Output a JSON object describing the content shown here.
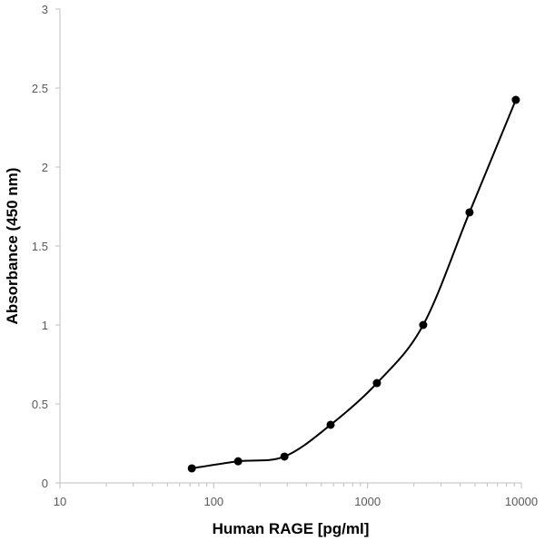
{
  "chart_data": {
    "type": "line",
    "title": "",
    "xlabel": "Human RAGE [pg/ml]",
    "ylabel": "Absorbance (450 nm)",
    "x_scale": "log",
    "xlim": [
      10,
      10000
    ],
    "ylim": [
      0,
      3
    ],
    "x_ticks": [
      "10",
      "100",
      "1000",
      "10000"
    ],
    "y_ticks": [
      "0",
      "0.5",
      "1",
      "1.5",
      "2",
      "2.5",
      "3"
    ],
    "grid": false,
    "smooth": true,
    "marker": "circle",
    "color": "#000000",
    "x": [
      72,
      144,
      288,
      575,
      1150,
      2300,
      4600,
      9200
    ],
    "y": [
      0.092,
      0.137,
      0.167,
      0.368,
      0.632,
      1.0,
      1.713,
      2.425
    ]
  }
}
